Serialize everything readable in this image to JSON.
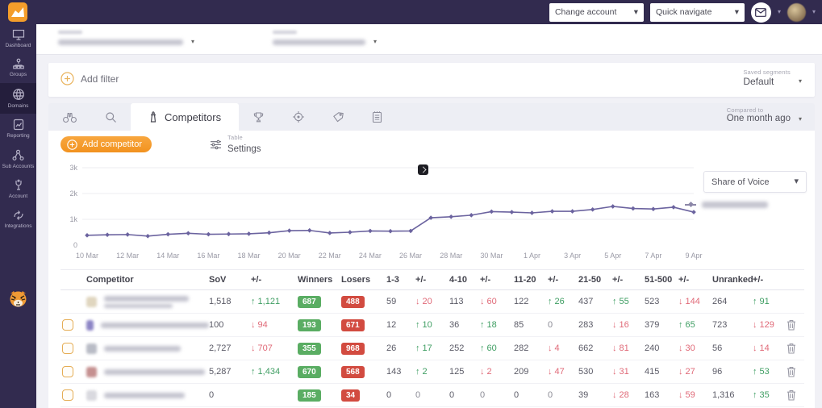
{
  "topbar": {
    "change_account_label": "Change account",
    "quick_navigate_label": "Quick navigate"
  },
  "sidebar": {
    "items": [
      {
        "label": "Dashboard",
        "icon": "dashboard-icon",
        "active": false
      },
      {
        "label": "Groups",
        "icon": "groups-icon",
        "active": false
      },
      {
        "label": "Domains",
        "icon": "domains-icon",
        "active": true
      },
      {
        "label": "Reporting",
        "icon": "reporting-icon",
        "active": false
      },
      {
        "label": "Sub Accounts",
        "icon": "sub-accounts-icon",
        "active": false
      },
      {
        "label": "Account",
        "icon": "account-icon",
        "active": false
      },
      {
        "label": "Integrations",
        "icon": "integrations-icon",
        "active": false
      }
    ]
  },
  "header_selectors": {
    "masked": true,
    "count": 2
  },
  "filter_bar": {
    "add_filter_label": "Add filter",
    "saved_segments_label": "Saved segments",
    "saved_segments_value": "Default"
  },
  "tabs": {
    "active_label": "Competitors",
    "icons": [
      "binoculars-icon",
      "search-icon",
      "competitors-icon",
      "trophy-icon",
      "target-icon",
      "tag-icon",
      "notes-icon"
    ],
    "compared_to_label": "Compared to",
    "compared_to_value": "One month ago"
  },
  "toolbar": {
    "add_competitor_label": "Add competitor",
    "table_settings_label_top": "Table",
    "table_settings_label_bottom": "Settings"
  },
  "chart_panel": {
    "metric_dropdown_value": "Share of Voice",
    "legend_masked": true,
    "note_annotation": true
  },
  "chart_data": {
    "type": "line",
    "title": "Share of Voice over time",
    "x": [
      "10 Mar",
      "11 Mar",
      "12 Mar",
      "13 Mar",
      "14 Mar",
      "15 Mar",
      "16 Mar",
      "17 Mar",
      "18 Mar",
      "19 Mar",
      "20 Mar",
      "21 Mar",
      "22 Mar",
      "23 Mar",
      "24 Mar",
      "25 Mar",
      "26 Mar",
      "27 Mar",
      "28 Mar",
      "29 Mar",
      "30 Mar",
      "31 Mar",
      "1 Apr",
      "2 Apr",
      "3 Apr",
      "4 Apr",
      "5 Apr",
      "6 Apr",
      "7 Apr",
      "8 Apr",
      "9 Apr"
    ],
    "values": [
      380,
      400,
      410,
      350,
      420,
      460,
      420,
      430,
      440,
      480,
      560,
      570,
      470,
      500,
      550,
      540,
      550,
      1060,
      1100,
      1160,
      1300,
      1280,
      1250,
      1310,
      1310,
      1380,
      1500,
      1420,
      1400,
      1470,
      1280
    ],
    "ylim": [
      0,
      3000
    ],
    "y_ticks": [
      "0",
      "1k",
      "2k",
      "3k"
    ],
    "x_tick_every": 2,
    "grid": true,
    "legend_position": "right",
    "line_color": "#6b639f"
  },
  "table": {
    "columns": [
      "",
      "Competitor",
      "SoV",
      "+/-",
      "Winners",
      "Losers",
      "1-3",
      "+/-",
      "4-10",
      "+/-",
      "11-20",
      "+/-",
      "21-50",
      "+/-",
      "51-500",
      "+/-",
      "Unranked",
      "+/-",
      ""
    ],
    "rows": [
      {
        "masked": true,
        "checkbox": false,
        "favicon_color": "#e0d6bf",
        "name_mask_w": 105,
        "domain_mask_w": 85,
        "sov": "1,518",
        "sov_chg": {
          "dir": "up",
          "val": "1,121"
        },
        "winners": "687",
        "losers": "488",
        "ranges": [
          {
            "v": "59",
            "chg": {
              "dir": "down",
              "val": "20"
            }
          },
          {
            "v": "113",
            "chg": {
              "dir": "down",
              "val": "60"
            }
          },
          {
            "v": "122",
            "chg": {
              "dir": "up",
              "val": "26"
            }
          },
          {
            "v": "437",
            "chg": {
              "dir": "up",
              "val": "55"
            }
          },
          {
            "v": "523",
            "chg": {
              "dir": "down",
              "val": "144"
            }
          },
          {
            "v": "264",
            "chg": {
              "dir": "up",
              "val": "91"
            }
          }
        ],
        "deletable": false
      },
      {
        "masked": true,
        "checkbox": true,
        "favicon_color": "#8d85c6",
        "name_mask_w": 200,
        "domain_mask_w": 0,
        "sov": "100",
        "sov_chg": {
          "dir": "down",
          "val": "94"
        },
        "winners": "193",
        "losers": "671",
        "ranges": [
          {
            "v": "12",
            "chg": {
              "dir": "up",
              "val": "10"
            }
          },
          {
            "v": "36",
            "chg": {
              "dir": "up",
              "val": "18"
            }
          },
          {
            "v": "85",
            "chg": {
              "dir": "none",
              "val": "0"
            }
          },
          {
            "v": "283",
            "chg": {
              "dir": "down",
              "val": "16"
            }
          },
          {
            "v": "379",
            "chg": {
              "dir": "up",
              "val": "65"
            }
          },
          {
            "v": "723",
            "chg": {
              "dir": "down",
              "val": "129"
            }
          }
        ],
        "deletable": true
      },
      {
        "masked": true,
        "checkbox": true,
        "favicon_color": "#b9bcc6",
        "name_mask_w": 95,
        "domain_mask_w": 0,
        "sov": "2,727",
        "sov_chg": {
          "dir": "down",
          "val": "707"
        },
        "winners": "355",
        "losers": "968",
        "ranges": [
          {
            "v": "26",
            "chg": {
              "dir": "up",
              "val": "17"
            }
          },
          {
            "v": "252",
            "chg": {
              "dir": "up",
              "val": "60"
            }
          },
          {
            "v": "282",
            "chg": {
              "dir": "down",
              "val": "4"
            }
          },
          {
            "v": "662",
            "chg": {
              "dir": "down",
              "val": "81"
            }
          },
          {
            "v": "240",
            "chg": {
              "dir": "down",
              "val": "30"
            }
          },
          {
            "v": "56",
            "chg": {
              "dir": "down",
              "val": "14"
            }
          }
        ],
        "deletable": true
      },
      {
        "masked": true,
        "checkbox": true,
        "favicon_color": "#c59090",
        "name_mask_w": 125,
        "domain_mask_w": 0,
        "sov": "5,287",
        "sov_chg": {
          "dir": "up",
          "val": "1,434"
        },
        "winners": "670",
        "losers": "568",
        "ranges": [
          {
            "v": "143",
            "chg": {
              "dir": "up",
              "val": "2"
            }
          },
          {
            "v": "125",
            "chg": {
              "dir": "down",
              "val": "2"
            }
          },
          {
            "v": "209",
            "chg": {
              "dir": "down",
              "val": "47"
            }
          },
          {
            "v": "530",
            "chg": {
              "dir": "down",
              "val": "31"
            }
          },
          {
            "v": "415",
            "chg": {
              "dir": "down",
              "val": "27"
            }
          },
          {
            "v": "96",
            "chg": {
              "dir": "up",
              "val": "53"
            }
          }
        ],
        "deletable": true
      },
      {
        "masked": true,
        "checkbox": true,
        "favicon_color": "#d9d9df",
        "name_mask_w": 100,
        "domain_mask_w": 0,
        "sov": "0",
        "sov_chg": null,
        "winners": "185",
        "losers": "34",
        "ranges": [
          {
            "v": "0",
            "chg": {
              "dir": "none",
              "val": "0"
            }
          },
          {
            "v": "0",
            "chg": {
              "dir": "none",
              "val": "0"
            }
          },
          {
            "v": "0",
            "chg": {
              "dir": "none",
              "val": "0"
            }
          },
          {
            "v": "39",
            "chg": {
              "dir": "down",
              "val": "28"
            }
          },
          {
            "v": "163",
            "chg": {
              "dir": "down",
              "val": "59"
            }
          },
          {
            "v": "1,316",
            "chg": {
              "dir": "up",
              "val": "35"
            }
          }
        ],
        "deletable": true
      }
    ]
  },
  "colors": {
    "accent_orange": "#f49d2b",
    "line_purple": "#6b639f",
    "badge_green": "#5aad63",
    "badge_red": "#d24b40",
    "up_green": "#3f9e63",
    "down_red": "#e06a78",
    "sidebar_bg": "#322b4f",
    "sidebar_active_bg": "#241e3c"
  }
}
